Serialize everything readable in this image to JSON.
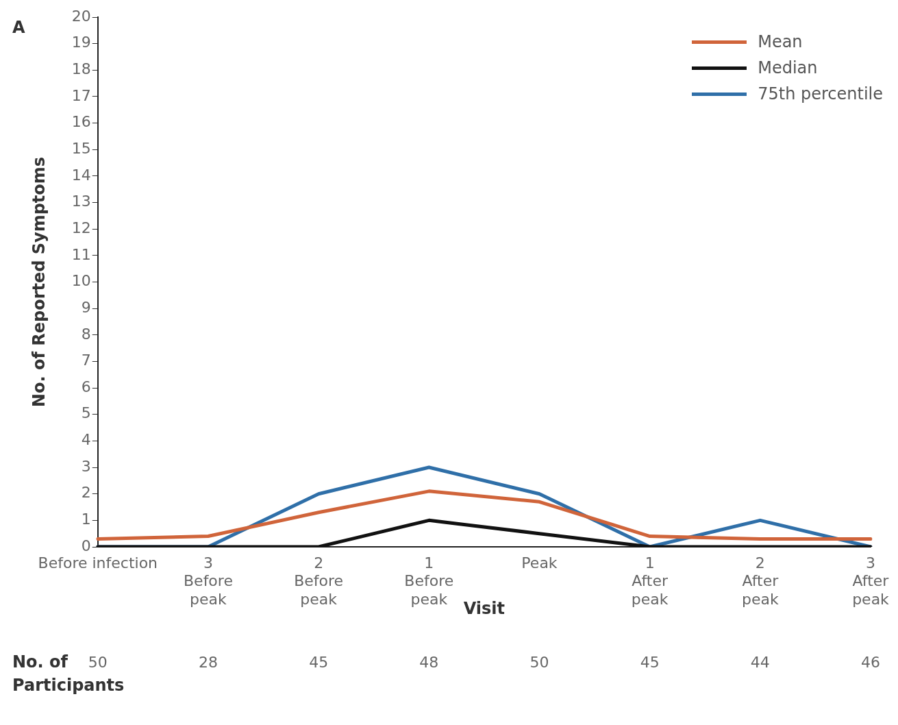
{
  "chart_data": {
    "type": "line",
    "xlabel": "Visit",
    "ylabel": "No. of Reported Symptoms",
    "categories": [
      "Before infection",
      "3\nBefore\npeak",
      "2\nBefore\npeak",
      "1\nBefore\npeak",
      "Peak",
      "1\nAfter\npeak",
      "2\nAfter\npeak",
      "3\nAfter\npeak"
    ],
    "series": [
      {
        "name": "Mean",
        "color": "#d0643a",
        "values": [
          0.3,
          0.4,
          1.3,
          2.1,
          1.7,
          0.4,
          0.3,
          0.3
        ]
      },
      {
        "name": "Median",
        "color": "#111111",
        "values": [
          0,
          0,
          0,
          1,
          0.5,
          0,
          0,
          0
        ]
      },
      {
        "name": "75th percentile",
        "color": "#2f6fa8",
        "values": [
          0,
          0,
          2,
          3,
          2,
          0,
          1,
          0
        ]
      }
    ],
    "ylim": [
      0,
      20
    ],
    "yticks": [
      0,
      1,
      2,
      3,
      4,
      5,
      6,
      7,
      8,
      9,
      10,
      11,
      12,
      13,
      14,
      15,
      16,
      17,
      18,
      19,
      20
    ],
    "grid": false,
    "legend": "top right",
    "marker": "none",
    "line_style": "solid",
    "annotations": [
      "A",
      "No. of\nParticipants",
      "50",
      "28",
      "45",
      "48",
      "50",
      "45",
      "44",
      "46"
    ]
  }
}
